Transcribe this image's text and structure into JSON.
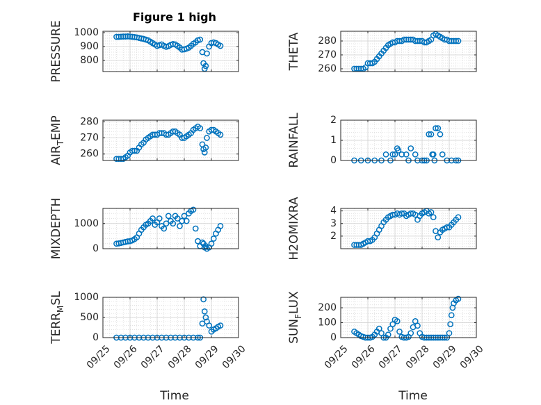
{
  "figure": {
    "title": "Figure 1 high",
    "xlabel": "Time",
    "marker_color": "#0072BD",
    "grid_color": "#d9d9d9",
    "axis_color": "#262626"
  },
  "chart_data": [
    {
      "type": "scatter",
      "ylabel": "PRESSURE",
      "title": "Figure 1 high",
      "xlim": [
        "09/25",
        "09/30"
      ],
      "ylim": [
        720,
        1010
      ],
      "yticks": [
        800,
        900,
        1000
      ],
      "xticks": [
        "09/25",
        "09/26",
        "09/27",
        "09/28",
        "09/29",
        "09/30"
      ],
      "show_xticklabels": false,
      "x": [
        "09/25 12:00",
        "09/25 14:00",
        "09/25 16:00",
        "09/25 18:00",
        "09/25 20:00",
        "09/25 22:00",
        "09/26 00:00",
        "09/26 02:00",
        "09/26 04:00",
        "09/26 06:00",
        "09/26 08:00",
        "09/26 10:00",
        "09/26 12:00",
        "09/26 14:00",
        "09/26 16:00",
        "09/26 18:00",
        "09/26 20:00",
        "09/26 22:00",
        "09/27 00:00",
        "09/27 02:00",
        "09/27 04:00",
        "09/27 06:00",
        "09/27 08:00",
        "09/27 10:00",
        "09/27 12:00",
        "09/27 14:00",
        "09/27 16:00",
        "09/27 18:00",
        "09/27 20:00",
        "09/27 22:00",
        "09/28 00:00",
        "09/28 02:00",
        "09/28 04:00",
        "09/28 06:00",
        "09/28 08:00",
        "09/28 10:00",
        "09/28 12:00",
        "09/28 14:00",
        "09/28 16:00",
        "09/28 17:00",
        "09/28 18:00",
        "09/28 19:00",
        "09/28 20:00",
        "09/28 22:00",
        "09/29 00:00",
        "09/29 02:00",
        "09/29 04:00",
        "09/29 06:00",
        "09/29 08:00"
      ],
      "y": [
        970,
        970,
        971,
        972,
        972,
        973,
        972,
        970,
        968,
        966,
        962,
        958,
        955,
        950,
        945,
        935,
        925,
        915,
        905,
        910,
        915,
        905,
        898,
        903,
        912,
        918,
        915,
        905,
        893,
        878,
        880,
        885,
        892,
        905,
        920,
        930,
        945,
        950,
        860,
        780,
        740,
        760,
        850,
        900,
        925,
        930,
        925,
        915,
        905
      ]
    },
    {
      "type": "scatter",
      "ylabel": "THETA",
      "xlim": [
        "09/25",
        "09/30"
      ],
      "ylim": [
        258,
        287
      ],
      "yticks": [
        260,
        270,
        280
      ],
      "xticks": [
        "09/25",
        "09/26",
        "09/27",
        "09/28",
        "09/29",
        "09/30"
      ],
      "show_xticklabels": false,
      "x": [
        "09/25 12:00",
        "09/25 14:00",
        "09/25 16:00",
        "09/25 18:00",
        "09/25 20:00",
        "09/25 22:00",
        "09/26 00:00",
        "09/26 02:00",
        "09/26 04:00",
        "09/26 06:00",
        "09/26 08:00",
        "09/26 10:00",
        "09/26 12:00",
        "09/26 14:00",
        "09/26 16:00",
        "09/26 18:00",
        "09/26 20:00",
        "09/26 22:00",
        "09/27 00:00",
        "09/27 02:00",
        "09/27 04:00",
        "09/27 06:00",
        "09/27 08:00",
        "09/27 10:00",
        "09/27 12:00",
        "09/27 14:00",
        "09/27 16:00",
        "09/27 18:00",
        "09/27 20:00",
        "09/27 22:00",
        "09/28 00:00",
        "09/28 02:00",
        "09/28 04:00",
        "09/28 06:00",
        "09/28 08:00",
        "09/28 10:00",
        "09/28 12:00",
        "09/28 14:00",
        "09/28 16:00",
        "09/28 18:00",
        "09/28 20:00",
        "09/28 22:00",
        "09/29 00:00",
        "09/29 02:00",
        "09/29 04:00",
        "09/29 06:00",
        "09/29 08:00"
      ],
      "y": [
        260,
        260,
        260,
        260,
        260,
        261,
        264,
        264,
        264,
        265,
        267,
        269,
        271,
        273,
        275,
        277,
        278,
        279,
        279,
        280,
        280,
        280,
        281,
        281,
        281,
        281,
        281,
        280,
        280,
        280,
        280,
        279,
        279,
        280,
        281,
        284,
        285,
        284,
        283,
        282,
        281,
        281,
        280,
        280,
        280,
        280,
        280
      ]
    },
    {
      "type": "scatter",
      "ylabel": "AIR_TEMP",
      "xlim": [
        "09/25",
        "09/30"
      ],
      "ylim": [
        256,
        281
      ],
      "yticks": [
        260,
        270,
        280
      ],
      "xticks": [
        "09/25",
        "09/26",
        "09/27",
        "09/28",
        "09/29",
        "09/30"
      ],
      "show_xticklabels": false,
      "x": [
        "09/25 12:00",
        "09/25 14:00",
        "09/25 16:00",
        "09/25 18:00",
        "09/25 20:00",
        "09/25 22:00",
        "09/26 00:00",
        "09/26 02:00",
        "09/26 04:00",
        "09/26 06:00",
        "09/26 08:00",
        "09/26 10:00",
        "09/26 12:00",
        "09/26 14:00",
        "09/26 16:00",
        "09/26 18:00",
        "09/26 20:00",
        "09/26 22:00",
        "09/27 00:00",
        "09/27 02:00",
        "09/27 04:00",
        "09/27 06:00",
        "09/27 08:00",
        "09/27 10:00",
        "09/27 12:00",
        "09/27 14:00",
        "09/27 16:00",
        "09/27 18:00",
        "09/27 20:00",
        "09/27 22:00",
        "09/28 00:00",
        "09/28 02:00",
        "09/28 04:00",
        "09/28 06:00",
        "09/28 08:00",
        "09/28 10:00",
        "09/28 12:00",
        "09/28 14:00",
        "09/28 16:00",
        "09/28 17:00",
        "09/28 18:00",
        "09/28 19:00",
        "09/28 20:00",
        "09/28 22:00",
        "09/29 00:00",
        "09/29 02:00",
        "09/29 04:00",
        "09/29 06:00",
        "09/29 08:00"
      ],
      "y": [
        257,
        257,
        257,
        257,
        258,
        259,
        261,
        262,
        262,
        262,
        264,
        266,
        267,
        269,
        270,
        271,
        272,
        272,
        272,
        273,
        273,
        273,
        272,
        272,
        273,
        274,
        274,
        273,
        272,
        270,
        270,
        271,
        272,
        273,
        275,
        276,
        277,
        276,
        266,
        263,
        261,
        264,
        270,
        274,
        275,
        275,
        274,
        273,
        272
      ]
    },
    {
      "type": "scatter",
      "ylabel": "RAINFALL",
      "xlim": [
        "09/25",
        "09/30"
      ],
      "ylim": [
        0,
        2
      ],
      "yticks": [
        0,
        1,
        2
      ],
      "xticks": [
        "09/25",
        "09/26",
        "09/27",
        "09/28",
        "09/29",
        "09/30"
      ],
      "show_xticklabels": false,
      "x": [
        "09/25 12:00",
        "09/25 18:00",
        "09/26 00:00",
        "09/26 06:00",
        "09/26 12:00",
        "09/26 16:00",
        "09/26 20:00",
        "09/26 22:00",
        "09/27 00:00",
        "09/27 02:00",
        "09/27 03:00",
        "09/27 06:00",
        "09/27 10:00",
        "09/27 12:00",
        "09/27 14:00",
        "09/27 18:00",
        "09/27 20:00",
        "09/28 00:00",
        "09/28 02:00",
        "09/28 04:00",
        "09/28 06:00",
        "09/28 08:00",
        "09/28 09:00",
        "09/28 10:00",
        "09/28 11:00",
        "09/28 12:00",
        "09/28 14:00",
        "09/28 16:00",
        "09/28 18:00",
        "09/28 22:00",
        "09/29 02:00",
        "09/29 06:00",
        "09/29 08:00"
      ],
      "y": [
        0,
        0,
        0,
        0,
        0,
        0.3,
        0,
        0.3,
        0.3,
        0.6,
        0.5,
        0.3,
        0.3,
        0,
        0.6,
        0.3,
        0,
        0,
        0,
        0,
        1.3,
        1.3,
        0.3,
        0.3,
        0,
        1.6,
        1.6,
        1.3,
        0.3,
        0,
        0,
        0,
        0
      ]
    },
    {
      "type": "scatter",
      "ylabel": "MIXDEPTH",
      "xlim": [
        "09/25",
        "09/30"
      ],
      "ylim": [
        0,
        1600
      ],
      "yticks": [
        0,
        1000
      ],
      "xticks": [
        "09/25",
        "09/26",
        "09/27",
        "09/28",
        "09/29",
        "09/30"
      ],
      "show_xticklabels": false,
      "x": [
        "09/25 12:00",
        "09/25 14:00",
        "09/25 16:00",
        "09/25 18:00",
        "09/25 20:00",
        "09/25 22:00",
        "09/26 00:00",
        "09/26 02:00",
        "09/26 04:00",
        "09/26 06:00",
        "09/26 08:00",
        "09/26 10:00",
        "09/26 12:00",
        "09/26 14:00",
        "09/26 16:00",
        "09/26 18:00",
        "09/26 20:00",
        "09/26 22:00",
        "09/27 00:00",
        "09/27 02:00",
        "09/27 04:00",
        "09/27 06:00",
        "09/27 08:00",
        "09/27 10:00",
        "09/27 12:00",
        "09/27 14:00",
        "09/27 16:00",
        "09/27 18:00",
        "09/27 20:00",
        "09/27 22:00",
        "09/28 00:00",
        "09/28 02:00",
        "09/28 04:00",
        "09/28 06:00",
        "09/28 08:00",
        "09/28 10:00",
        "09/28 12:00",
        "09/28 14:00",
        "09/28 16:00",
        "09/28 17:00",
        "09/28 18:00",
        "09/28 19:00",
        "09/28 20:00",
        "09/28 22:00",
        "09/29 00:00",
        "09/29 02:00",
        "09/29 04:00",
        "09/29 06:00",
        "09/29 08:00"
      ],
      "y": [
        200,
        210,
        230,
        250,
        270,
        290,
        300,
        330,
        380,
        450,
        600,
        750,
        850,
        950,
        1000,
        1100,
        1200,
        950,
        1050,
        1200,
        900,
        800,
        1000,
        1300,
        1100,
        1000,
        1300,
        1200,
        900,
        1100,
        1300,
        1100,
        1400,
        1500,
        1550,
        800,
        300,
        100,
        250,
        200,
        50,
        100,
        0,
        50,
        200,
        400,
        600,
        750,
        900
      ]
    },
    {
      "type": "scatter",
      "ylabel": "H2OMIXRA",
      "xlim": [
        "09/25",
        "09/30"
      ],
      "ylim": [
        1,
        4.2
      ],
      "yticks": [
        2,
        3,
        4
      ],
      "xticks": [
        "09/25",
        "09/26",
        "09/27",
        "09/28",
        "09/29",
        "09/30"
      ],
      "show_xticklabels": false,
      "x": [
        "09/25 12:00",
        "09/25 14:00",
        "09/25 16:00",
        "09/25 18:00",
        "09/25 20:00",
        "09/25 22:00",
        "09/26 00:00",
        "09/26 02:00",
        "09/26 04:00",
        "09/26 06:00",
        "09/26 08:00",
        "09/26 10:00",
        "09/26 12:00",
        "09/26 14:00",
        "09/26 16:00",
        "09/26 18:00",
        "09/26 20:00",
        "09/26 22:00",
        "09/27 00:00",
        "09/27 02:00",
        "09/27 04:00",
        "09/27 06:00",
        "09/27 08:00",
        "09/27 10:00",
        "09/27 12:00",
        "09/27 14:00",
        "09/27 16:00",
        "09/27 18:00",
        "09/27 20:00",
        "09/27 22:00",
        "09/28 00:00",
        "09/28 02:00",
        "09/28 04:00",
        "09/28 06:00",
        "09/28 08:00",
        "09/28 10:00",
        "09/28 12:00",
        "09/28 14:00",
        "09/28 16:00",
        "09/28 18:00",
        "09/28 20:00",
        "09/28 22:00",
        "09/29 00:00",
        "09/29 02:00",
        "09/29 04:00",
        "09/29 06:00",
        "09/29 08:00"
      ],
      "y": [
        1.3,
        1.3,
        1.3,
        1.3,
        1.4,
        1.5,
        1.6,
        1.6,
        1.7,
        1.9,
        2.2,
        2.5,
        2.8,
        3.1,
        3.3,
        3.5,
        3.6,
        3.7,
        3.7,
        3.8,
        3.7,
        3.8,
        3.8,
        3.6,
        3.7,
        3.8,
        3.8,
        3.7,
        3.3,
        3.6,
        3.8,
        3.9,
        4.0,
        3.8,
        3.9,
        3.5,
        2.4,
        1.9,
        2.3,
        2.5,
        2.6,
        2.7,
        2.7,
        2.9,
        3.1,
        3.3,
        3.5
      ]
    },
    {
      "type": "scatter",
      "ylabel": "TERR_MSL",
      "xlim": [
        "09/25",
        "09/30"
      ],
      "ylim": [
        0,
        1000
      ],
      "yticks": [
        0,
        500,
        1000
      ],
      "xticks": [
        "09/25",
        "09/26",
        "09/27",
        "09/28",
        "09/29",
        "09/30"
      ],
      "show_xticklabels": true,
      "x": [
        "09/25 12:00",
        "09/25 16:00",
        "09/25 20:00",
        "09/26 00:00",
        "09/26 04:00",
        "09/26 08:00",
        "09/26 12:00",
        "09/26 16:00",
        "09/26 20:00",
        "09/27 00:00",
        "09/27 04:00",
        "09/27 08:00",
        "09/27 12:00",
        "09/27 16:00",
        "09/27 20:00",
        "09/28 00:00",
        "09/28 04:00",
        "09/28 08:00",
        "09/28 12:00",
        "09/28 14:00",
        "09/28 16:00",
        "09/28 17:00",
        "09/28 18:00",
        "09/28 19:00",
        "09/28 20:00",
        "09/28 22:00",
        "09/29 00:00",
        "09/29 02:00",
        "09/29 04:00",
        "09/29 06:00",
        "09/29 08:00"
      ],
      "y": [
        0,
        0,
        0,
        0,
        0,
        0,
        0,
        0,
        0,
        0,
        0,
        0,
        0,
        0,
        0,
        0,
        0,
        0,
        0,
        0,
        350,
        950,
        650,
        500,
        400,
        300,
        150,
        200,
        230,
        270,
        300
      ]
    },
    {
      "type": "scatter",
      "ylabel": "SUN_FLUX",
      "xlim": [
        "09/25",
        "09/30"
      ],
      "ylim": [
        0,
        270
      ],
      "yticks": [
        0,
        100,
        200
      ],
      "xticks": [
        "09/25",
        "09/26",
        "09/27",
        "09/28",
        "09/29",
        "09/30"
      ],
      "show_xticklabels": true,
      "x": [
        "09/25 12:00",
        "09/25 14:00",
        "09/25 16:00",
        "09/25 18:00",
        "09/25 20:00",
        "09/25 22:00",
        "09/26 00:00",
        "09/26 02:00",
        "09/26 04:00",
        "09/26 06:00",
        "09/26 08:00",
        "09/26 10:00",
        "09/26 12:00",
        "09/26 14:00",
        "09/26 16:00",
        "09/26 18:00",
        "09/26 20:00",
        "09/26 22:00",
        "09/27 00:00",
        "09/27 02:00",
        "09/27 04:00",
        "09/27 06:00",
        "09/27 08:00",
        "09/27 10:00",
        "09/27 12:00",
        "09/27 14:00",
        "09/27 16:00",
        "09/27 18:00",
        "09/27 20:00",
        "09/27 22:00",
        "09/28 00:00",
        "09/28 02:00",
        "09/28 04:00",
        "09/28 06:00",
        "09/28 08:00",
        "09/28 10:00",
        "09/28 12:00",
        "09/28 14:00",
        "09/28 16:00",
        "09/28 18:00",
        "09/28 20:00",
        "09/28 22:00",
        "09/29 00:00",
        "09/29 01:00",
        "09/29 02:00",
        "09/29 03:00",
        "09/29 04:00",
        "09/29 06:00",
        "09/29 08:00"
      ],
      "y": [
        40,
        30,
        20,
        10,
        5,
        0,
        0,
        0,
        5,
        20,
        40,
        60,
        30,
        0,
        0,
        20,
        60,
        90,
        120,
        110,
        40,
        5,
        0,
        0,
        5,
        30,
        70,
        110,
        80,
        30,
        5,
        0,
        0,
        0,
        0,
        0,
        0,
        0,
        0,
        0,
        0,
        0,
        30,
        90,
        150,
        200,
        230,
        250,
        260
      ]
    }
  ]
}
